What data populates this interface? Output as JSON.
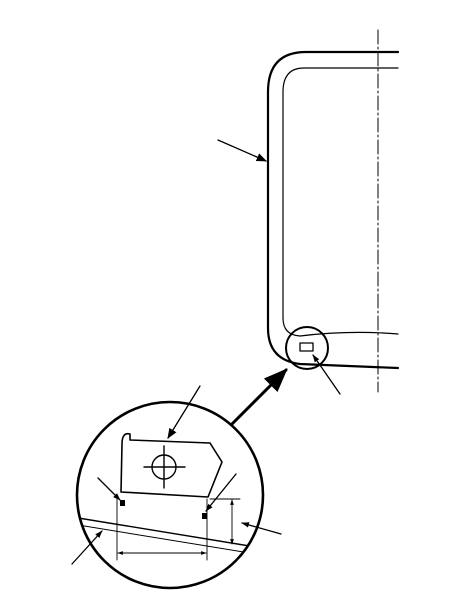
{
  "figure": {
    "labels": []
  }
}
